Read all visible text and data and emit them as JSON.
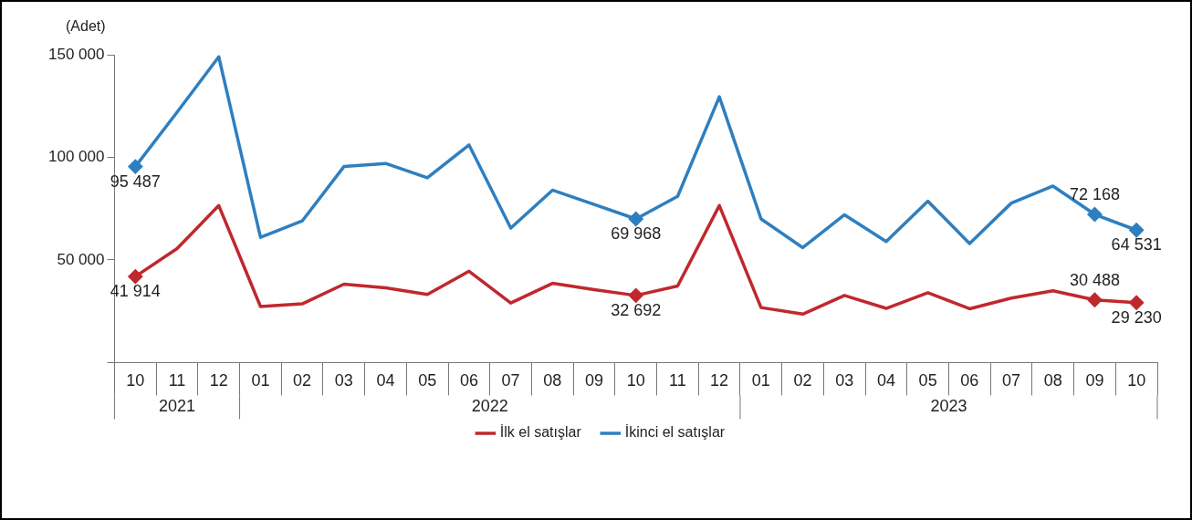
{
  "chart_data": {
    "type": "line",
    "ylabel": "(Adet)",
    "categories": [
      "10",
      "11",
      "12",
      "01",
      "02",
      "03",
      "04",
      "05",
      "06",
      "07",
      "08",
      "09",
      "10",
      "11",
      "12",
      "01",
      "02",
      "03",
      "04",
      "05",
      "06",
      "07",
      "08",
      "09",
      "10"
    ],
    "annotations": [
      "2021",
      "2022",
      "2023"
    ],
    "series": [
      {
        "name": "İlk el satışlar",
        "color": "#c0282d",
        "values": [
          41914,
          55500,
          76500,
          27300,
          28600,
          38200,
          36400,
          33200,
          44500,
          29000,
          38600,
          35500,
          32692,
          37300,
          76500,
          26800,
          23600,
          32700,
          26400,
          34000,
          26200,
          31400,
          35000,
          30488,
          29230
        ],
        "value_labels": [
          "41 914",
          null,
          null,
          null,
          null,
          null,
          null,
          null,
          null,
          null,
          null,
          null,
          "32 692",
          null,
          null,
          null,
          null,
          null,
          null,
          null,
          null,
          null,
          null,
          "30 488",
          "29 230"
        ]
      },
      {
        "name": "İkinci el satışlar",
        "color": "#2e7fc0",
        "values": [
          95487,
          122000,
          149000,
          61000,
          69000,
          95500,
          97000,
          90000,
          106000,
          65500,
          84000,
          77000,
          69968,
          81000,
          129500,
          70000,
          56000,
          72000,
          59000,
          78600,
          58000,
          77700,
          86000,
          72168,
          64531
        ],
        "value_labels": [
          "95 487",
          null,
          null,
          null,
          null,
          null,
          null,
          null,
          null,
          null,
          null,
          null,
          "69 968",
          null,
          null,
          null,
          null,
          null,
          null,
          null,
          null,
          null,
          null,
          "72 168",
          "64 531"
        ]
      }
    ],
    "ylim": [
      0,
      150000
    ],
    "yticks": [
      {
        "value": 0,
        "label": null
      },
      {
        "value": 50000,
        "label": "50 000"
      },
      {
        "value": 100000,
        "label": "100 000"
      },
      {
        "value": 150000,
        "label": "150 000"
      }
    ],
    "grid": false,
    "legend": "bottom",
    "line_style": "solid"
  }
}
